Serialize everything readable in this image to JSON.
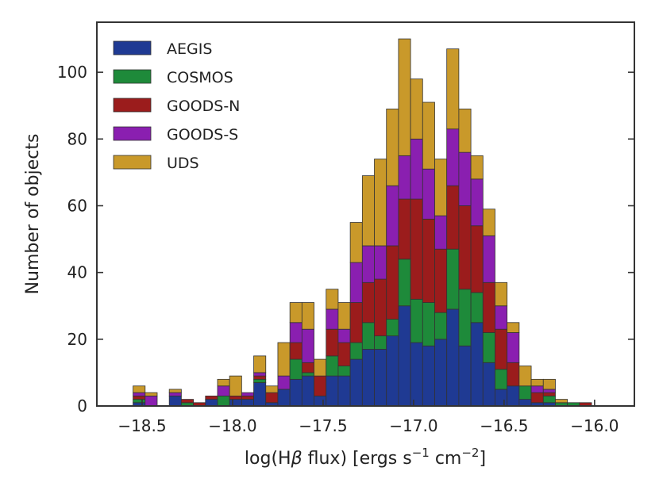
{
  "chart_data": {
    "type": "stacked-histogram",
    "title": "",
    "xlabel": "log(Hβ flux) [ergs s⁻¹ cm⁻²]",
    "xlabel_parts": {
      "prefix": "log(H",
      "beta": "β",
      "middle": " flux) [ergs s",
      "sup1": "−1",
      "middle2": " cm",
      "sup2": "−2",
      "suffix": "]"
    },
    "ylabel": "Number of objects",
    "xlim": [
      -18.75,
      -15.78
    ],
    "ylim": [
      0,
      115
    ],
    "xticks": [
      -18.5,
      -18.0,
      -17.5,
      -17.0,
      -16.5,
      -16.0
    ],
    "xtick_labels": [
      "−18.5",
      "−18.0",
      "−17.5",
      "−17.0",
      "−16.5",
      "−16.0"
    ],
    "yticks": [
      0,
      20,
      40,
      60,
      80,
      100
    ],
    "ytick_labels": [
      "0",
      "20",
      "40",
      "60",
      "80",
      "100"
    ],
    "legend_position": "top-left",
    "bin_width": 0.0667,
    "bin_starts": [
      -18.55,
      -18.4833,
      -18.4167,
      -18.35,
      -18.2833,
      -18.2167,
      -18.15,
      -18.0833,
      -18.0167,
      -17.95,
      -17.8833,
      -17.8167,
      -17.75,
      -17.6833,
      -17.6167,
      -17.55,
      -17.4833,
      -17.4167,
      -17.35,
      -17.2833,
      -17.2167,
      -17.15,
      -17.0833,
      -17.0167,
      -16.95,
      -16.8833,
      -16.8167,
      -16.75,
      -16.6833,
      -16.6167,
      -16.55,
      -16.4833,
      -16.4167,
      -16.35,
      -16.2833,
      -16.2167,
      -16.15,
      -16.0833
    ],
    "series": [
      {
        "name": "AEGIS",
        "color": "#1f3a93",
        "values": [
          1,
          0,
          0,
          3,
          0,
          0,
          2,
          0,
          2,
          2,
          7,
          1,
          5,
          8,
          9,
          3,
          9,
          9,
          14,
          17,
          17,
          21,
          30,
          19,
          18,
          20,
          29,
          18,
          25,
          13,
          5,
          6,
          2,
          1,
          1,
          0,
          0,
          0
        ]
      },
      {
        "name": "COSMOS",
        "color": "#1e8a3a",
        "values": [
          1,
          0,
          0,
          0,
          1,
          0,
          0,
          3,
          0,
          0,
          1,
          0,
          0,
          6,
          1,
          0,
          6,
          3,
          5,
          8,
          4,
          5,
          14,
          13,
          13,
          8,
          18,
          17,
          9,
          9,
          6,
          0,
          4,
          0,
          2,
          1,
          1,
          0
        ]
      },
      {
        "name": "GOODS-N",
        "color": "#9b1c1c",
        "values": [
          1,
          0,
          0,
          0,
          1,
          1,
          1,
          0,
          1,
          1,
          1,
          3,
          0,
          5,
          3,
          6,
          8,
          7,
          12,
          12,
          17,
          22,
          18,
          30,
          25,
          19,
          19,
          25,
          20,
          15,
          12,
          7,
          0,
          3,
          1,
          0,
          0,
          1
        ]
      },
      {
        "name": "GOODS-S",
        "color": "#8a1fb0",
        "values": [
          1,
          3,
          0,
          1,
          0,
          0,
          0,
          3,
          0,
          1,
          1,
          0,
          4,
          6,
          10,
          0,
          6,
          4,
          12,
          11,
          10,
          18,
          13,
          18,
          15,
          10,
          17,
          16,
          14,
          14,
          7,
          9,
          0,
          2,
          1,
          0,
          0,
          0
        ]
      },
      {
        "name": "UDS",
        "color": "#c9992a",
        "values": [
          2,
          1,
          0,
          1,
          0,
          0,
          0,
          2,
          6,
          0,
          5,
          2,
          10,
          6,
          8,
          5,
          6,
          8,
          12,
          21,
          26,
          23,
          35,
          18,
          20,
          17,
          24,
          13,
          7,
          8,
          7,
          3,
          6,
          2,
          3,
          1,
          0,
          0
        ]
      }
    ]
  }
}
